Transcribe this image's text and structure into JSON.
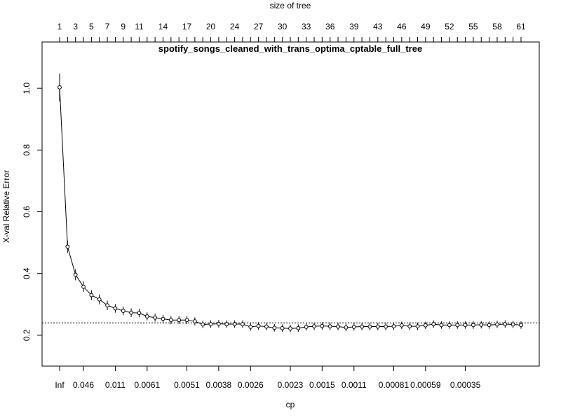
{
  "chart_data": {
    "type": "line",
    "title": "spotify_songs_cleaned_with_trans_optima_cptable_full_tree",
    "xlabel": "cp",
    "ylabel": "X-val Relative Error",
    "top_axis_label": "size of tree",
    "ylim": [
      0.1,
      1.15
    ],
    "y_ticks": [
      0.2,
      0.4,
      0.6,
      0.8,
      1.0
    ],
    "y_tick_labels": [
      "0.2",
      "0.4",
      "0.6",
      "0.8",
      "1.0"
    ],
    "top_tick_labels": [
      "1",
      "3",
      "5",
      "7",
      "9",
      "11",
      "14",
      "17",
      "20",
      "24",
      "27",
      "30",
      "33",
      "36",
      "39",
      "43",
      "46",
      "49",
      "52",
      "55",
      "58",
      "61"
    ],
    "top_tick_positions": [
      1,
      3,
      5,
      7,
      9,
      11,
      14,
      17,
      20,
      23,
      26,
      29,
      32,
      35,
      38,
      41,
      44,
      47,
      50,
      53,
      56,
      59
    ],
    "bottom_tick_labels": [
      "Inf",
      "0.046",
      "0.011",
      "0.0061",
      "0.0051",
      "0.0038",
      "0.0026",
      "0.0023",
      "0.0015",
      "0.0011",
      "0.00081",
      "0.00059",
      "0.00035"
    ],
    "bottom_tick_positions": [
      1,
      4,
      8,
      12,
      17,
      21,
      25,
      30,
      34,
      38,
      43,
      47,
      52
    ],
    "reference_line": 0.24,
    "x": [
      1,
      2,
      3,
      4,
      5,
      6,
      7,
      8,
      9,
      10,
      11,
      12,
      13,
      14,
      15,
      16,
      17,
      18,
      19,
      20,
      21,
      22,
      23,
      24,
      25,
      26,
      27,
      28,
      29,
      30,
      31,
      32,
      33,
      34,
      35,
      36,
      37,
      38,
      39,
      40,
      41,
      42,
      43,
      44,
      45,
      46,
      47,
      48,
      49,
      50,
      51,
      52,
      53,
      54,
      55,
      56,
      57,
      58,
      59
    ],
    "values": [
      1.003,
      0.487,
      0.396,
      0.357,
      0.33,
      0.316,
      0.297,
      0.287,
      0.279,
      0.273,
      0.272,
      0.261,
      0.257,
      0.253,
      0.249,
      0.249,
      0.249,
      0.245,
      0.235,
      0.236,
      0.237,
      0.236,
      0.236,
      0.236,
      0.227,
      0.23,
      0.228,
      0.224,
      0.223,
      0.222,
      0.223,
      0.227,
      0.229,
      0.23,
      0.229,
      0.228,
      0.225,
      0.227,
      0.228,
      0.228,
      0.228,
      0.228,
      0.229,
      0.232,
      0.229,
      0.229,
      0.232,
      0.236,
      0.233,
      0.233,
      0.233,
      0.233,
      0.233,
      0.234,
      0.233,
      0.235,
      0.236,
      0.235,
      0.233
    ],
    "errors": [
      0.045,
      0.02,
      0.018,
      0.017,
      0.016,
      0.016,
      0.015,
      0.014,
      0.014,
      0.014,
      0.014,
      0.013,
      0.013,
      0.013,
      0.013,
      0.013,
      0.013,
      0.013,
      0.012,
      0.012,
      0.012,
      0.012,
      0.012,
      0.012,
      0.012,
      0.012,
      0.012,
      0.012,
      0.012,
      0.012,
      0.012,
      0.012,
      0.012,
      0.012,
      0.012,
      0.012,
      0.012,
      0.012,
      0.012,
      0.012,
      0.012,
      0.012,
      0.012,
      0.012,
      0.012,
      0.012,
      0.012,
      0.012,
      0.012,
      0.012,
      0.012,
      0.012,
      0.012,
      0.012,
      0.012,
      0.012,
      0.012,
      0.012,
      0.012
    ]
  }
}
